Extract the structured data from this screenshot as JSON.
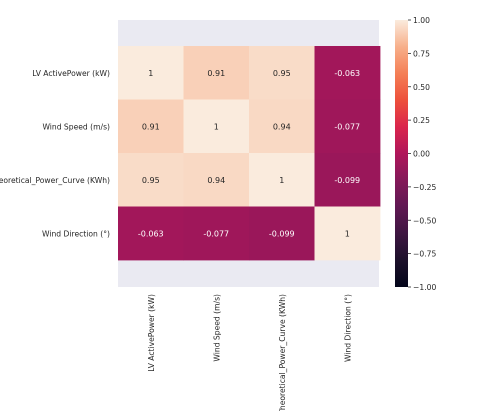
{
  "chart_data": {
    "type": "heatmap",
    "title": "",
    "xlabel": "",
    "ylabel": "",
    "row_labels": [
      "LV ActivePower (kW)",
      "Wind Speed (m/s)",
      "Theoretical_Power_Curve (KWh)",
      "Wind Direction (°)"
    ],
    "col_labels": [
      "LV ActivePower (kW)",
      "Wind Speed (m/s)",
      "Theoretical_Power_Curve (KWh)",
      "Wind Direction (°)"
    ],
    "values": [
      [
        1,
        0.91,
        0.95,
        -0.063
      ],
      [
        0.91,
        1,
        0.94,
        -0.077
      ],
      [
        0.95,
        0.94,
        1,
        -0.099
      ],
      [
        -0.063,
        -0.077,
        -0.099,
        1
      ]
    ],
    "value_labels": [
      [
        "1",
        "0.91",
        "0.95",
        "-0.063"
      ],
      [
        "0.91",
        "1",
        "0.94",
        "-0.077"
      ],
      [
        "0.95",
        "0.94",
        "1",
        "-0.099"
      ],
      [
        "-0.063",
        "-0.077",
        "-0.099",
        "1"
      ]
    ],
    "vmin": -1,
    "vmax": 1,
    "colormap": "rocket",
    "plot_background": "#eaeaf2",
    "colorbar": {
      "ticks": [
        1,
        0.75,
        0.5,
        0.25,
        0,
        -0.25,
        -0.5,
        -0.75,
        -1
      ],
      "tick_labels": [
        "1.00",
        "0.75",
        "0.50",
        "0.25",
        "0.00",
        "−0.25",
        "−0.50",
        "−0.75",
        "−1.00"
      ]
    }
  }
}
